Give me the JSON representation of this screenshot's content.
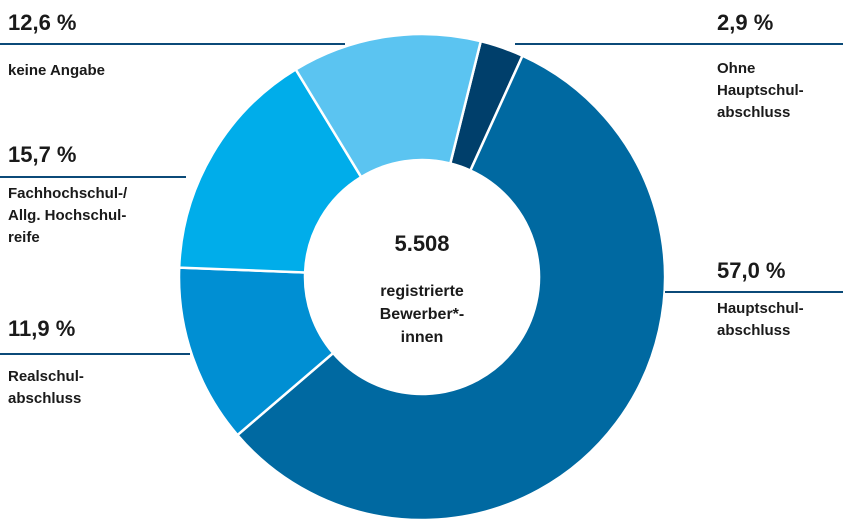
{
  "chart_data": {
    "type": "donut",
    "categories": [
      "Ohne\nHauptschul-\nabschluss",
      "Hauptschul-\nabschluss",
      "Realschul-\nabschluss",
      "Fachhochschul-/\nAllg. Hochschul-\nreife",
      "keine Angabe"
    ],
    "values": [
      2.9,
      57.0,
      11.9,
      15.7,
      12.6
    ],
    "value_labels": [
      "2,9 %",
      "57,0 %",
      "11,9 %",
      "15,7 %",
      "12,6 %"
    ],
    "colors": [
      "#003f6b",
      "#0069a1",
      "#008fd3",
      "#00adea",
      "#5bc4f1"
    ],
    "center_title": "5.508",
    "center_label": "registrierte\nBewerber*-\ninnen"
  }
}
